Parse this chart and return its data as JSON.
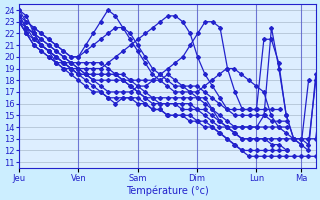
{
  "xlabel": "Température (°c)",
  "ylabel": "",
  "bg_color": "#cceeff",
  "plot_bg_color": "#ddeeff",
  "line_color": "#2222cc",
  "grid_color": "#aabbcc",
  "ylim": [
    10.5,
    24.5
  ],
  "yticks": [
    11,
    12,
    13,
    14,
    15,
    16,
    17,
    18,
    19,
    20,
    21,
    22,
    23,
    24
  ],
  "day_labels": [
    "Jeu",
    "Ven",
    "Sam",
    "Dim",
    "Lun",
    "Ma"
  ],
  "day_positions": [
    0,
    48,
    96,
    144,
    192,
    228
  ],
  "total_hours": 240,
  "series": [
    [
      24.0,
      23.5,
      22.0,
      21.0,
      20.5,
      19.5,
      19.0,
      18.5,
      18.0,
      17.5,
      17.0,
      17.0,
      16.5,
      16.0,
      16.5,
      16.5,
      16.0,
      16.0,
      15.5,
      15.5,
      15.0,
      15.0,
      15.0,
      14.5,
      14.5,
      14.0,
      14.0,
      13.5,
      13.0,
      12.5,
      12.0,
      11.5,
      11.5,
      11.5,
      11.5,
      11.5,
      11.5,
      11.5,
      11.5,
      11.5,
      11.5
    ],
    [
      23.5,
      22.5,
      21.5,
      21.0,
      20.5,
      20.0,
      19.5,
      19.0,
      18.5,
      18.0,
      17.5,
      17.0,
      16.5,
      16.5,
      16.5,
      16.5,
      16.5,
      16.0,
      15.5,
      15.5,
      15.0,
      15.0,
      15.0,
      15.0,
      14.5,
      14.5,
      14.0,
      13.5,
      13.0,
      12.5,
      12.0,
      12.0,
      12.0,
      12.0,
      12.0,
      12.0,
      12.0
    ],
    [
      23.0,
      22.0,
      21.5,
      21.0,
      20.5,
      20.0,
      19.5,
      19.0,
      18.5,
      18.5,
      18.0,
      17.5,
      17.0,
      17.0,
      17.0,
      17.0,
      17.5,
      17.5,
      18.0,
      18.5,
      19.0,
      19.5,
      20.0,
      21.0,
      22.0,
      23.0,
      23.0,
      22.5,
      19.0,
      17.0,
      15.5,
      15.5,
      15.5,
      15.5,
      15.5,
      15.5
    ],
    [
      23.0,
      22.0,
      21.0,
      20.5,
      20.0,
      19.5,
      19.0,
      19.0,
      19.0,
      19.0,
      19.0,
      19.0,
      19.5,
      20.0,
      20.5,
      21.0,
      21.5,
      22.0,
      22.5,
      23.0,
      23.5,
      23.5,
      23.0,
      22.0,
      20.0,
      18.5,
      17.5,
      16.5,
      15.5,
      15.0,
      15.0,
      15.0,
      15.0,
      15.0,
      14.5,
      14.5,
      14.5
    ],
    [
      23.0,
      22.0,
      21.0,
      20.5,
      20.0,
      19.5,
      19.5,
      19.5,
      19.5,
      19.5,
      19.5,
      19.5,
      19.0,
      18.5,
      18.0,
      17.5,
      17.0,
      16.5,
      16.5,
      16.5,
      16.5,
      16.5,
      16.5,
      16.5,
      16.5,
      16.5,
      15.5,
      14.5,
      14.0,
      13.5,
      13.0,
      13.0,
      13.0,
      13.0,
      12.5,
      12.5,
      12.0
    ],
    [
      23.5,
      22.5,
      22.0,
      21.5,
      21.0,
      20.5,
      20.0,
      19.5,
      19.0,
      18.5,
      18.0,
      18.0,
      18.0,
      18.0,
      18.0,
      18.0,
      18.0,
      18.0,
      18.0,
      18.0,
      18.5,
      18.0,
      17.5,
      17.0,
      16.5,
      16.0,
      15.5,
      15.0,
      14.5,
      14.0,
      14.0,
      14.0,
      14.0,
      14.0,
      14.0,
      14.0,
      14.0
    ],
    [
      24.0,
      23.0,
      22.5,
      22.0,
      21.5,
      21.0,
      20.5,
      20.0,
      20.0,
      21.0,
      22.0,
      23.0,
      24.0,
      23.5,
      22.5,
      21.5,
      20.5,
      19.5,
      18.5,
      18.0,
      17.5,
      17.0,
      17.0,
      17.0,
      17.0,
      17.5,
      18.0,
      18.5,
      19.0,
      19.0,
      18.5,
      18.0,
      17.5,
      17.0,
      15.0,
      14.0,
      13.5,
      13.0,
      13.0,
      13.0,
      13.0,
      18.0
    ],
    [
      23.0,
      22.5,
      22.0,
      21.5,
      21.0,
      20.5,
      20.0,
      19.5,
      19.0,
      18.5,
      18.5,
      18.5,
      18.5,
      18.5,
      18.0,
      17.5,
      17.0,
      16.5,
      16.0,
      16.0,
      16.0,
      16.0,
      16.0,
      16.0,
      15.5,
      15.0,
      14.5,
      14.0,
      14.0,
      14.0,
      14.0,
      14.0,
      14.0,
      15.0,
      22.5,
      19.0,
      15.0,
      13.0,
      12.5,
      18.0
    ],
    [
      23.5,
      23.0,
      22.5,
      22.0,
      21.5,
      21.0,
      20.5,
      20.0,
      20.0,
      20.5,
      21.0,
      21.5,
      22.0,
      22.5,
      22.5,
      22.0,
      21.0,
      20.0,
      19.0,
      18.5,
      18.0,
      17.5,
      17.5,
      17.5,
      17.5,
      17.0,
      16.5,
      16.0,
      15.5,
      15.5,
      15.5,
      15.5,
      15.5,
      21.5,
      21.5,
      19.5,
      15.0,
      13.0,
      12.5,
      12.0,
      18.5
    ],
    [
      23.0,
      22.5,
      22.0,
      21.0,
      20.5,
      20.0,
      19.5,
      19.0,
      18.5,
      18.5,
      18.5,
      18.5,
      18.5,
      18.5,
      18.5,
      18.0,
      17.5,
      17.0,
      16.5,
      16.0,
      16.0,
      16.0,
      15.5,
      15.5,
      15.5,
      15.5,
      15.0,
      14.5,
      14.0,
      13.5,
      13.0,
      13.0,
      13.0,
      13.0,
      13.0,
      13.0,
      13.0,
      13.0,
      13.0,
      12.5,
      18.0
    ]
  ]
}
